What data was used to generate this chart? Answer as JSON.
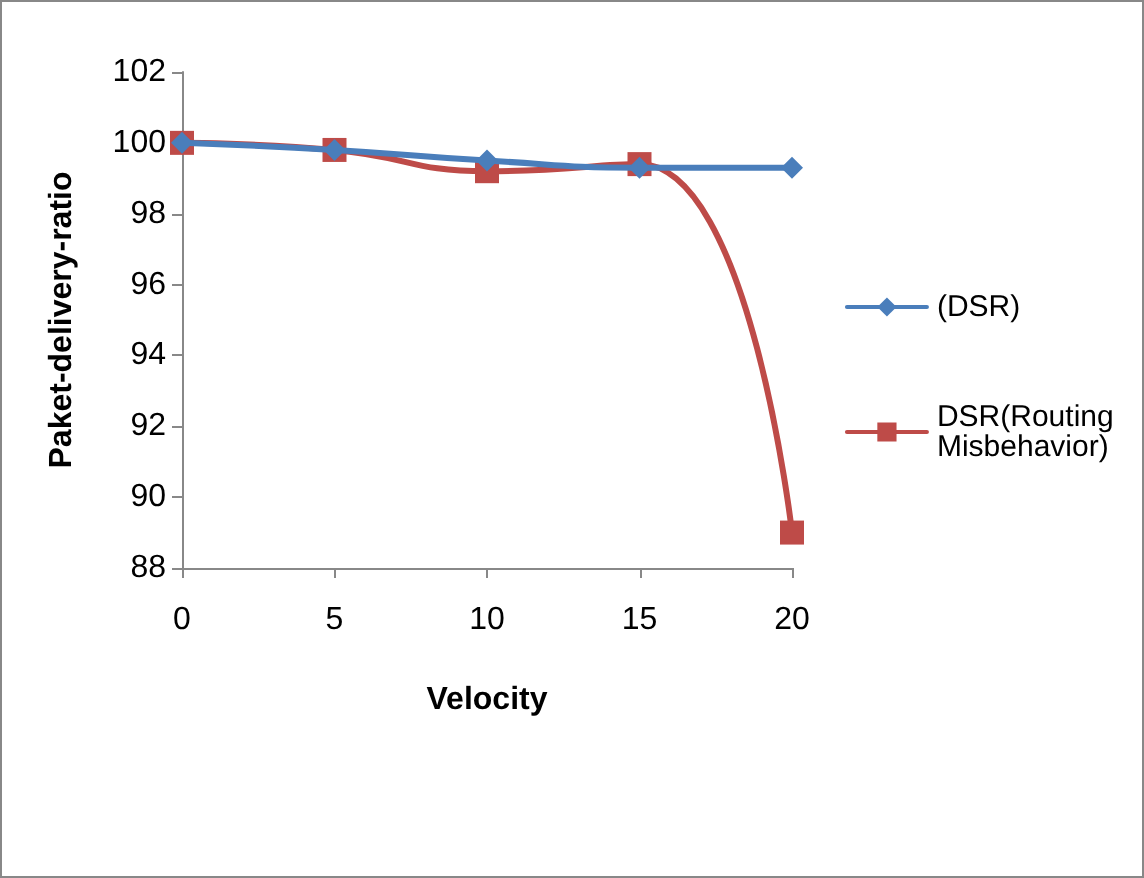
{
  "chart_data": {
    "type": "line",
    "xlabel": "Velocity",
    "ylabel": "Paket-delivery-ratio",
    "categories": [
      "0",
      "5",
      "10",
      "15",
      "20"
    ],
    "series": [
      {
        "name": "(DSR)",
        "color": "#4a7ebb",
        "marker": "diamond",
        "values": [
          100,
          99.8,
          99.5,
          99.3,
          99.3
        ]
      },
      {
        "name": "DSR(Routing Misbehavior)",
        "color": "#be4b48",
        "marker": "square",
        "values": [
          100,
          99.8,
          99.2,
          99.4,
          89
        ]
      }
    ],
    "ylim": [
      88,
      102
    ],
    "yticks": [
      88,
      90,
      92,
      94,
      96,
      98,
      100,
      102
    ],
    "grid": false,
    "legend": "right"
  }
}
